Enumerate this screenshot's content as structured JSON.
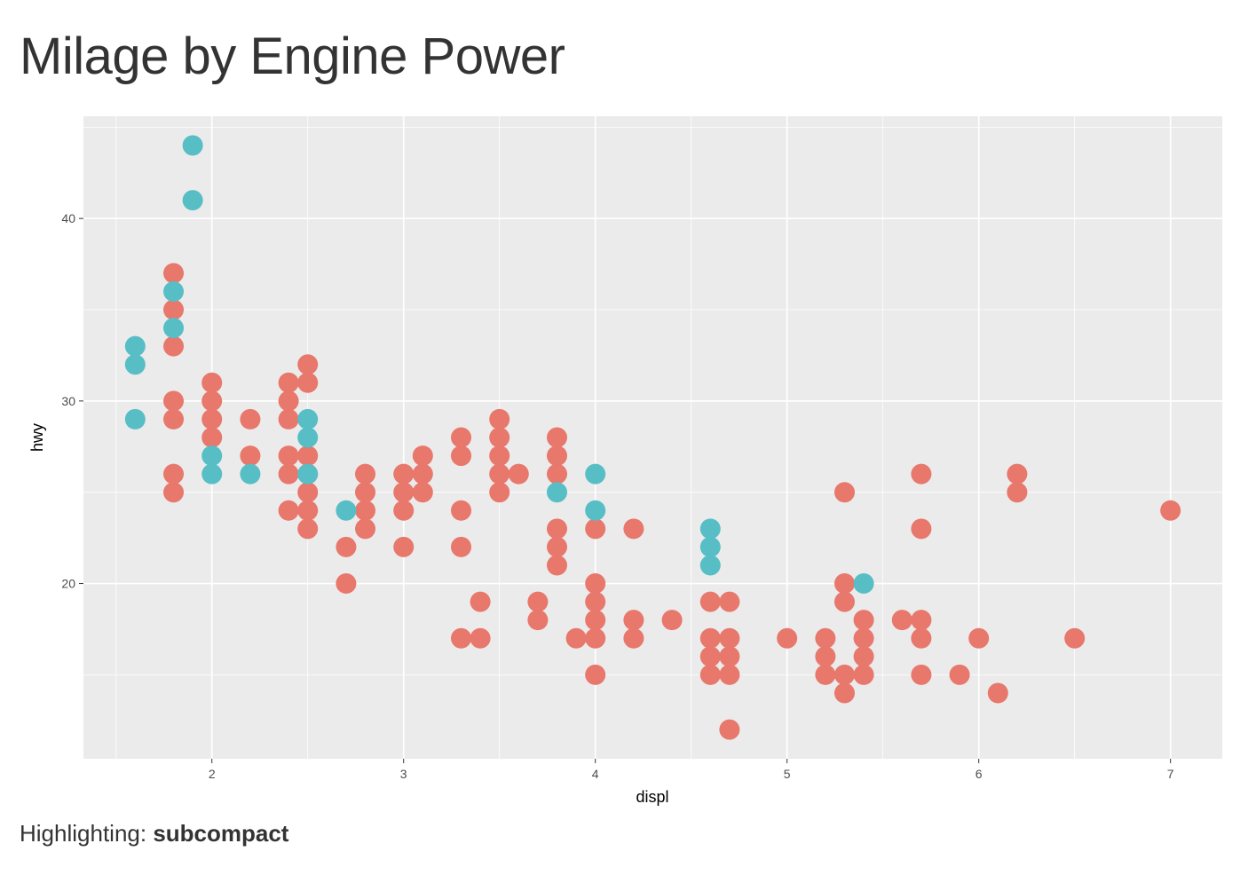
{
  "page": {
    "title": "Milage by Engine Power",
    "footer_label": "Highlighting: ",
    "footer_value": "subcompact"
  },
  "colors": {
    "panel_bg": "#EBEBEB",
    "grid": "#FFFFFF",
    "other": "#E8776C",
    "highlight": "#57BEC6"
  },
  "chart_data": {
    "type": "scatter",
    "title": "Milage by Engine Power",
    "xlabel": "displ",
    "ylabel": "hwy",
    "xlim": [
      1.33,
      7.27
    ],
    "ylim": [
      10.4,
      45.6
    ],
    "x_ticks": [
      2,
      3,
      4,
      5,
      6,
      7
    ],
    "y_ticks": [
      20,
      30,
      40
    ],
    "grid": true,
    "legend": "none",
    "highlight_group": "subcompact",
    "series": [
      {
        "points": [
          [
            1.8,
            25
          ],
          [
            1.8,
            26
          ],
          [
            1.8,
            29
          ],
          [
            1.8,
            30
          ],
          [
            1.8,
            33
          ],
          [
            1.8,
            35
          ],
          [
            1.8,
            37
          ],
          [
            2.0,
            28
          ],
          [
            2.0,
            29
          ],
          [
            2.0,
            30
          ],
          [
            2.0,
            31
          ],
          [
            2.2,
            27
          ],
          [
            2.2,
            29
          ],
          [
            2.4,
            24
          ],
          [
            2.4,
            26
          ],
          [
            2.4,
            27
          ],
          [
            2.4,
            29
          ],
          [
            2.4,
            30
          ],
          [
            2.4,
            31
          ],
          [
            2.5,
            23
          ],
          [
            2.5,
            24
          ],
          [
            2.5,
            25
          ],
          [
            2.5,
            26
          ],
          [
            2.5,
            27
          ],
          [
            2.5,
            31
          ],
          [
            2.5,
            32
          ],
          [
            2.7,
            20
          ],
          [
            2.7,
            22
          ],
          [
            2.8,
            23
          ],
          [
            2.8,
            24
          ],
          [
            2.8,
            25
          ],
          [
            2.8,
            26
          ],
          [
            3.0,
            22
          ],
          [
            3.0,
            24
          ],
          [
            3.0,
            25
          ],
          [
            3.0,
            26
          ],
          [
            3.1,
            25
          ],
          [
            3.1,
            26
          ],
          [
            3.1,
            27
          ],
          [
            3.3,
            17
          ],
          [
            3.3,
            22
          ],
          [
            3.3,
            24
          ],
          [
            3.3,
            27
          ],
          [
            3.3,
            28
          ],
          [
            3.4,
            17
          ],
          [
            3.4,
            19
          ],
          [
            3.5,
            25
          ],
          [
            3.5,
            26
          ],
          [
            3.5,
            27
          ],
          [
            3.5,
            28
          ],
          [
            3.5,
            29
          ],
          [
            3.6,
            26
          ],
          [
            3.7,
            18
          ],
          [
            3.7,
            19
          ],
          [
            3.8,
            21
          ],
          [
            3.8,
            22
          ],
          [
            3.8,
            23
          ],
          [
            3.8,
            26
          ],
          [
            3.8,
            27
          ],
          [
            3.8,
            28
          ],
          [
            3.9,
            17
          ],
          [
            4.0,
            15
          ],
          [
            4.0,
            17
          ],
          [
            4.0,
            18
          ],
          [
            4.0,
            19
          ],
          [
            4.0,
            20
          ],
          [
            4.0,
            23
          ],
          [
            4.2,
            17
          ],
          [
            4.2,
            18
          ],
          [
            4.2,
            23
          ],
          [
            4.4,
            18
          ],
          [
            4.6,
            15
          ],
          [
            4.6,
            16
          ],
          [
            4.6,
            17
          ],
          [
            4.6,
            19
          ],
          [
            4.7,
            12
          ],
          [
            4.7,
            15
          ],
          [
            4.7,
            16
          ],
          [
            4.7,
            17
          ],
          [
            4.7,
            19
          ],
          [
            5.0,
            17
          ],
          [
            5.2,
            15
          ],
          [
            5.2,
            16
          ],
          [
            5.2,
            17
          ],
          [
            5.3,
            14
          ],
          [
            5.3,
            15
          ],
          [
            5.3,
            19
          ],
          [
            5.3,
            20
          ],
          [
            5.3,
            25
          ],
          [
            5.4,
            15
          ],
          [
            5.4,
            16
          ],
          [
            5.4,
            17
          ],
          [
            5.4,
            18
          ],
          [
            5.6,
            18
          ],
          [
            5.7,
            15
          ],
          [
            5.7,
            17
          ],
          [
            5.7,
            18
          ],
          [
            5.7,
            23
          ],
          [
            5.7,
            26
          ],
          [
            5.9,
            15
          ],
          [
            6.0,
            17
          ],
          [
            6.1,
            14
          ],
          [
            6.2,
            25
          ],
          [
            6.2,
            26
          ],
          [
            6.5,
            17
          ],
          [
            7.0,
            24
          ]
        ]
      },
      {
        "points": [
          [
            1.6,
            29
          ],
          [
            1.6,
            32
          ],
          [
            1.6,
            33
          ],
          [
            1.8,
            34
          ],
          [
            1.8,
            36
          ],
          [
            1.9,
            41
          ],
          [
            1.9,
            44
          ],
          [
            2.0,
            26
          ],
          [
            2.0,
            27
          ],
          [
            2.2,
            26
          ],
          [
            2.5,
            26
          ],
          [
            2.5,
            28
          ],
          [
            2.5,
            29
          ],
          [
            2.7,
            24
          ],
          [
            3.8,
            25
          ],
          [
            4.0,
            24
          ],
          [
            4.0,
            26
          ],
          [
            4.6,
            21
          ],
          [
            4.6,
            22
          ],
          [
            4.6,
            23
          ],
          [
            5.4,
            20
          ]
        ]
      }
    ]
  }
}
